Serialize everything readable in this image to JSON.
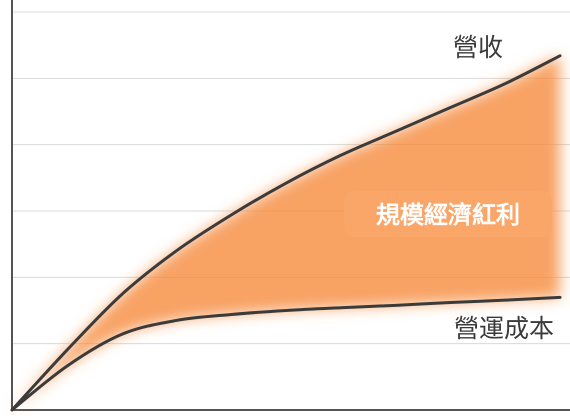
{
  "chart_data": {
    "type": "line",
    "title": "",
    "xlabel": "",
    "ylabel": "",
    "xlim": [
      0,
      100
    ],
    "ylim": [
      0,
      100
    ],
    "grid": true,
    "legend": "none",
    "series": [
      {
        "name": "營收",
        "x": [
          0,
          10,
          20,
          30,
          40,
          50,
          60,
          70,
          80,
          90,
          100
        ],
        "y": [
          0,
          15,
          29,
          40,
          49,
          57,
          64,
          70,
          76,
          82,
          89
        ]
      },
      {
        "name": "營運成本",
        "x": [
          0,
          10,
          20,
          30,
          40,
          50,
          60,
          70,
          80,
          90,
          100
        ],
        "y": [
          0,
          11,
          19,
          22.5,
          24,
          25,
          25.7,
          26.3,
          27,
          27.6,
          28.3
        ]
      }
    ],
    "annotations": [
      {
        "text": "規模經濟紅利",
        "region": "between-series"
      }
    ]
  },
  "colors": {
    "line": "#3b3b3b",
    "grid": "#dadada",
    "axis": "#555555",
    "fill": "#f6883a",
    "callout_bg": "#f8a668",
    "callout_text": "#ffffff"
  }
}
